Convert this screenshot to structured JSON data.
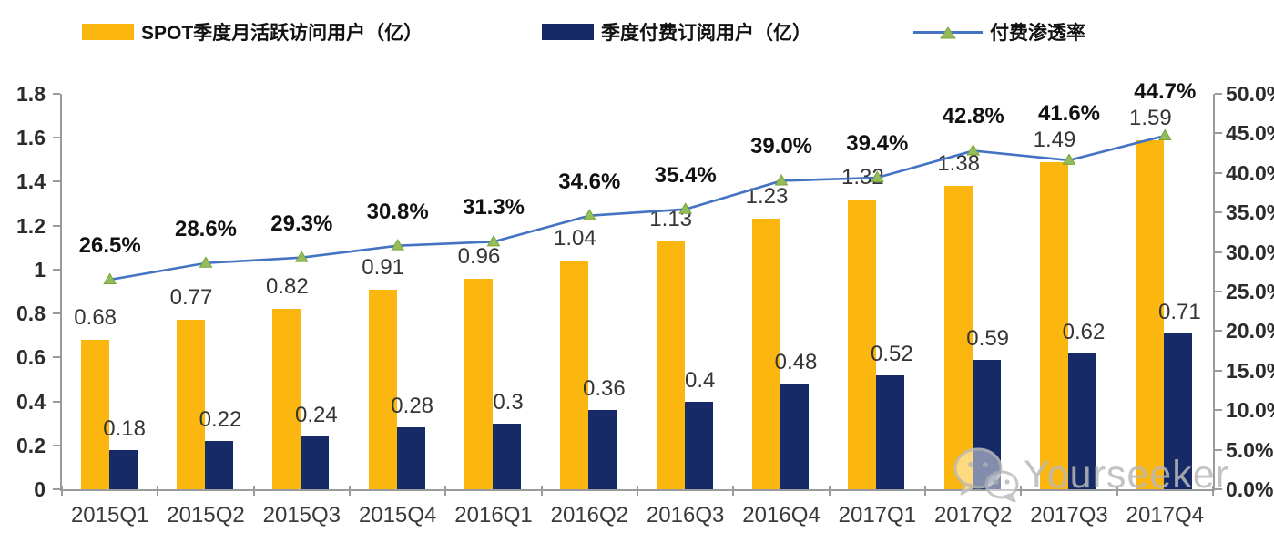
{
  "chart_data": {
    "type": "combo",
    "title": "",
    "categories": [
      "2015Q1",
      "2015Q2",
      "2015Q3",
      "2015Q4",
      "2016Q1",
      "2016Q2",
      "2016Q3",
      "2016Q4",
      "2017Q1",
      "2017Q2",
      "2017Q3",
      "2017Q4"
    ],
    "series": [
      {
        "name": "SPOT季度月活跃访问用户（亿）",
        "type": "bar",
        "axis": "left",
        "color": "#FBB70F",
        "values": [
          0.68,
          0.77,
          0.82,
          0.91,
          0.96,
          1.04,
          1.13,
          1.23,
          1.32,
          1.38,
          1.49,
          1.59
        ],
        "labels": [
          "0.68",
          "0.77",
          "0.82",
          "0.91",
          "0.96",
          "1.04",
          "1.13",
          "1.23",
          "1.32",
          "1.38",
          "1.49",
          "1.59"
        ]
      },
      {
        "name": "季度付费订阅用户（亿）",
        "type": "bar",
        "axis": "left",
        "color": "#152A66",
        "values": [
          0.18,
          0.22,
          0.24,
          0.28,
          0.3,
          0.36,
          0.4,
          0.48,
          0.52,
          0.59,
          0.62,
          0.71
        ],
        "labels": [
          "0.18",
          "0.22",
          "0.24",
          "0.28",
          "0.3",
          "0.36",
          "0.4",
          "0.48",
          "0.52",
          "0.59",
          "0.62",
          "0.71"
        ]
      },
      {
        "name": "付费渗透率",
        "type": "line",
        "axis": "right",
        "color": "#4573C4",
        "marker": "triangle",
        "marker_color": "#94BC5A",
        "marker_edge_color": "#79A43C",
        "values": [
          26.5,
          28.6,
          29.3,
          30.8,
          31.3,
          34.6,
          35.4,
          39.0,
          39.4,
          42.8,
          41.6,
          44.7
        ],
        "labels": [
          "26.5%",
          "28.6%",
          "29.3%",
          "30.8%",
          "31.3%",
          "34.6%",
          "35.4%",
          "39.0%",
          "39.4%",
          "42.8%",
          "41.6%",
          "44.7%"
        ]
      }
    ],
    "left_axis": {
      "min": 0,
      "max": 1.8,
      "tick_step": 0.2,
      "tick_labels": [
        "0",
        "0.2",
        "0.4",
        "0.6",
        "0.8",
        "1",
        "1.2",
        "1.4",
        "1.6",
        "1.8"
      ]
    },
    "right_axis": {
      "min": 0,
      "max": 50,
      "tick_step": 5,
      "tick_labels": [
        "0.0%",
        "5.0%",
        "10.0%",
        "15.0%",
        "20.0%",
        "25.0%",
        "30.0%",
        "35.0%",
        "40.0%",
        "45.0%",
        "50.0%"
      ]
    },
    "grid": false,
    "legend_position": "top",
    "axis_color": "#9B9B9B"
  },
  "watermark": {
    "text": "Yourseeker",
    "icon": "wechat-icon"
  }
}
